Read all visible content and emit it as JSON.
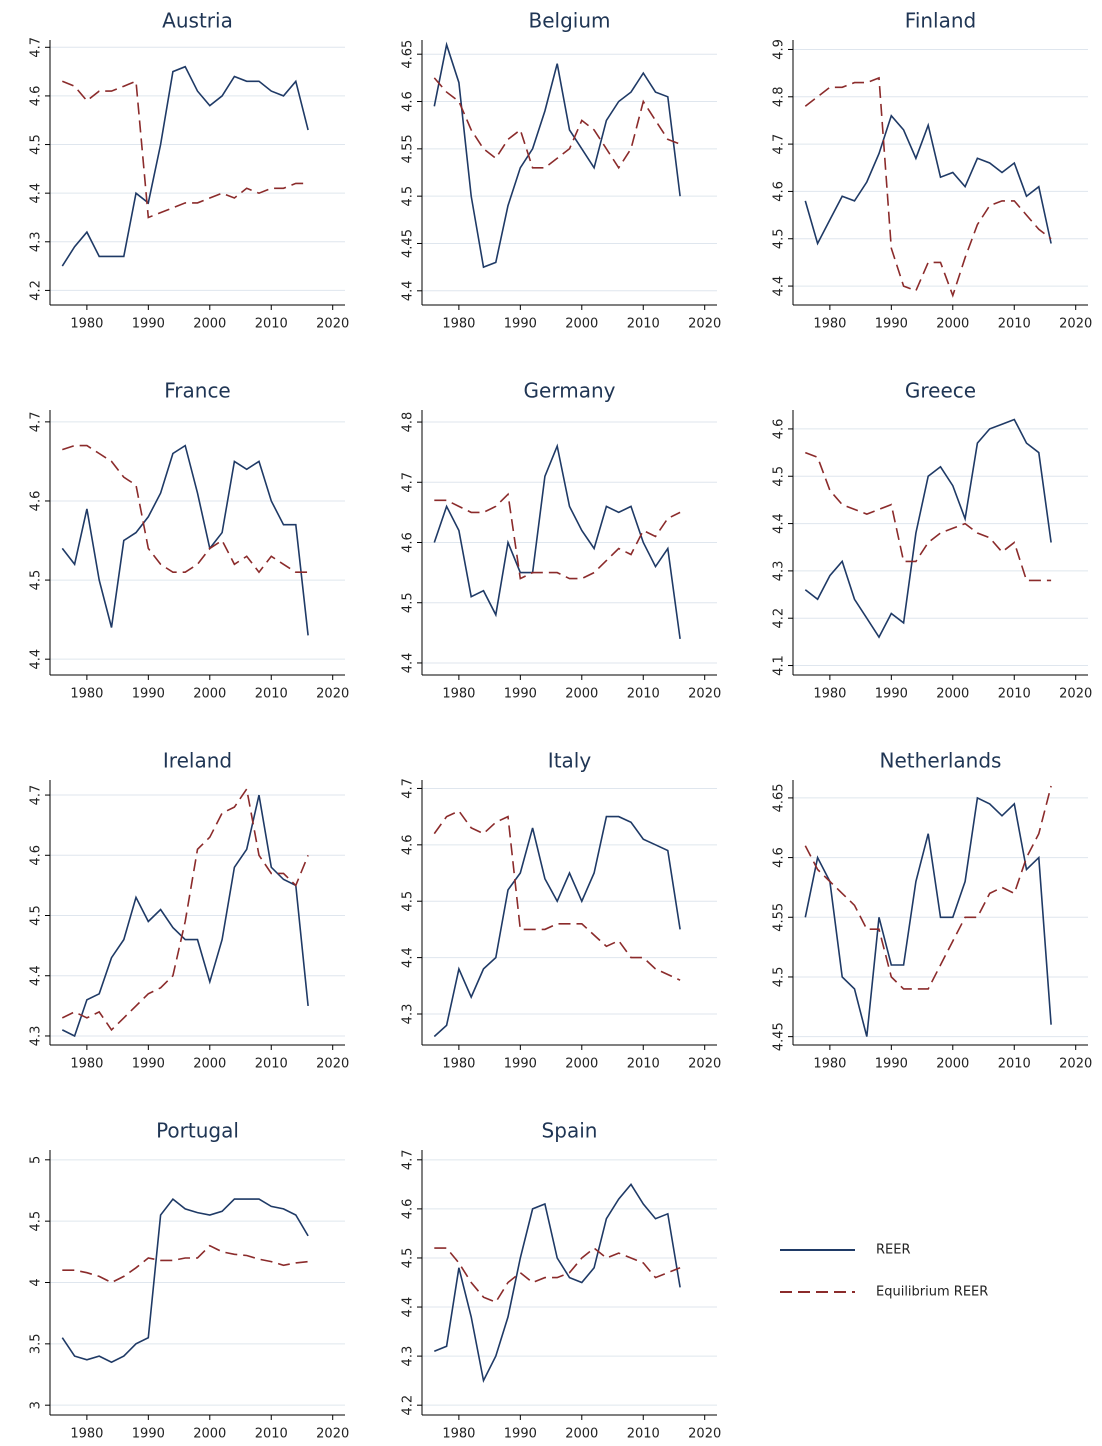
{
  "legend": [
    {
      "name": "REER",
      "color": "#1f3a66",
      "dash": "none"
    },
    {
      "name": "Equilibrium REER",
      "color": "#8b2b2b",
      "dash": "12 6"
    }
  ],
  "chart_data": [
    {
      "type": "line",
      "title": "Austria",
      "x": [
        1976,
        1978,
        1980,
        1982,
        1984,
        1986,
        1988,
        1990,
        1992,
        1994,
        1996,
        1998,
        2000,
        2002,
        2004,
        2006,
        2008,
        2010,
        2012,
        2014,
        2016
      ],
      "xlim": [
        1974,
        2022
      ],
      "xticks": [
        1980,
        1990,
        2000,
        2010,
        2020
      ],
      "ylim": [
        4.17,
        4.715
      ],
      "yticks": [
        4.2,
        4.3,
        4.4,
        4.5,
        4.6,
        4.7
      ],
      "series": [
        {
          "values": [
            4.25,
            4.29,
            4.32,
            4.27,
            4.27,
            4.27,
            4.4,
            4.38,
            4.5,
            4.65,
            4.66,
            4.61,
            4.58,
            4.6,
            4.64,
            4.63,
            4.63,
            4.61,
            4.6,
            4.63,
            4.53
          ]
        },
        {
          "values": [
            4.63,
            4.62,
            4.59,
            4.61,
            4.61,
            4.62,
            4.63,
            4.35,
            4.36,
            4.37,
            4.38,
            4.38,
            4.39,
            4.4,
            4.39,
            4.41,
            4.4,
            4.41,
            4.41,
            4.42,
            4.42
          ]
        }
      ]
    },
    {
      "type": "line",
      "title": "Belgium",
      "x": [
        1976,
        1978,
        1980,
        1982,
        1984,
        1986,
        1988,
        1990,
        1992,
        1994,
        1996,
        1998,
        2000,
        2002,
        2004,
        2006,
        2008,
        2010,
        2012,
        2014,
        2016
      ],
      "xlim": [
        1974,
        2022
      ],
      "xticks": [
        1980,
        1990,
        2000,
        2010,
        2020
      ],
      "ylim": [
        4.385,
        4.665
      ],
      "yticks": [
        4.4,
        4.45,
        4.5,
        4.55,
        4.6,
        4.65
      ],
      "series": [
        {
          "values": [
            4.595,
            4.66,
            4.62,
            4.5,
            4.425,
            4.43,
            4.49,
            4.53,
            4.55,
            4.59,
            4.64,
            4.57,
            4.55,
            4.53,
            4.58,
            4.6,
            4.61,
            4.63,
            4.61,
            4.605,
            4.5
          ]
        },
        {
          "values": [
            4.625,
            4.61,
            4.6,
            4.57,
            4.55,
            4.54,
            4.56,
            4.57,
            4.53,
            4.53,
            4.54,
            4.55,
            4.58,
            4.57,
            4.55,
            4.53,
            4.55,
            4.6,
            4.58,
            4.56,
            4.555
          ]
        }
      ]
    },
    {
      "type": "line",
      "title": "Finland",
      "x": [
        1976,
        1978,
        1980,
        1982,
        1984,
        1986,
        1988,
        1990,
        1992,
        1994,
        1996,
        1998,
        2000,
        2002,
        2004,
        2006,
        2008,
        2010,
        2012,
        2014,
        2016
      ],
      "xlim": [
        1974,
        2022
      ],
      "xticks": [
        1980,
        1990,
        2000,
        2010,
        2020
      ],
      "ylim": [
        4.36,
        4.92
      ],
      "yticks": [
        4.4,
        4.5,
        4.6,
        4.7,
        4.8,
        4.9
      ],
      "series": [
        {
          "values": [
            4.58,
            4.49,
            4.54,
            4.59,
            4.58,
            4.62,
            4.68,
            4.76,
            4.73,
            4.67,
            4.74,
            4.63,
            4.64,
            4.61,
            4.67,
            4.66,
            4.64,
            4.66,
            4.59,
            4.61,
            4.49
          ]
        },
        {
          "values": [
            4.78,
            4.8,
            4.82,
            4.82,
            4.83,
            4.83,
            4.84,
            4.48,
            4.4,
            4.39,
            4.45,
            4.45,
            4.38,
            4.46,
            4.53,
            4.57,
            4.58,
            4.58,
            4.55,
            4.52,
            4.5
          ]
        }
      ]
    },
    {
      "type": "line",
      "title": "France",
      "x": [
        1976,
        1978,
        1980,
        1982,
        1984,
        1986,
        1988,
        1990,
        1992,
        1994,
        1996,
        1998,
        2000,
        2002,
        2004,
        2006,
        2008,
        2010,
        2012,
        2014,
        2016
      ],
      "xlim": [
        1974,
        2022
      ],
      "xticks": [
        1980,
        1990,
        2000,
        2010,
        2020
      ],
      "ylim": [
        4.38,
        4.715
      ],
      "yticks": [
        4.4,
        4.5,
        4.6,
        4.7
      ],
      "series": [
        {
          "values": [
            4.54,
            4.52,
            4.59,
            4.5,
            4.44,
            4.55,
            4.56,
            4.58,
            4.61,
            4.66,
            4.67,
            4.61,
            4.54,
            4.56,
            4.65,
            4.64,
            4.65,
            4.6,
            4.57,
            4.57,
            4.43
          ]
        },
        {
          "values": [
            4.665,
            4.67,
            4.67,
            4.66,
            4.65,
            4.63,
            4.62,
            4.54,
            4.52,
            4.51,
            4.51,
            4.52,
            4.54,
            4.55,
            4.52,
            4.53,
            4.51,
            4.53,
            4.52,
            4.51,
            4.51
          ]
        }
      ]
    },
    {
      "type": "line",
      "title": "Germany",
      "x": [
        1976,
        1978,
        1980,
        1982,
        1984,
        1986,
        1988,
        1990,
        1992,
        1994,
        1996,
        1998,
        2000,
        2002,
        2004,
        2006,
        2008,
        2010,
        2012,
        2014,
        2016
      ],
      "xlim": [
        1974,
        2022
      ],
      "xticks": [
        1980,
        1990,
        2000,
        2010,
        2020
      ],
      "ylim": [
        4.38,
        4.82
      ],
      "yticks": [
        4.4,
        4.5,
        4.6,
        4.7,
        4.8
      ],
      "series": [
        {
          "values": [
            4.6,
            4.66,
            4.62,
            4.51,
            4.52,
            4.48,
            4.6,
            4.55,
            4.55,
            4.71,
            4.76,
            4.66,
            4.62,
            4.59,
            4.66,
            4.65,
            4.66,
            4.6,
            4.56,
            4.59,
            4.44
          ]
        },
        {
          "values": [
            4.67,
            4.67,
            4.66,
            4.65,
            4.65,
            4.66,
            4.68,
            4.54,
            4.55,
            4.55,
            4.55,
            4.54,
            4.54,
            4.55,
            4.57,
            4.59,
            4.58,
            4.62,
            4.61,
            4.64,
            4.65
          ]
        }
      ]
    },
    {
      "type": "line",
      "title": "Greece",
      "x": [
        1976,
        1978,
        1980,
        1982,
        1984,
        1986,
        1988,
        1990,
        1992,
        1994,
        1996,
        1998,
        2000,
        2002,
        2004,
        2006,
        2008,
        2010,
        2012,
        2014,
        2016
      ],
      "xlim": [
        1974,
        2022
      ],
      "xticks": [
        1980,
        1990,
        2000,
        2010,
        2020
      ],
      "ylim": [
        4.08,
        4.64
      ],
      "yticks": [
        4.1,
        4.2,
        4.3,
        4.4,
        4.5,
        4.6
      ],
      "series": [
        {
          "values": [
            4.26,
            4.24,
            4.29,
            4.32,
            4.24,
            4.2,
            4.16,
            4.21,
            4.19,
            4.38,
            4.5,
            4.52,
            4.48,
            4.41,
            4.57,
            4.6,
            4.61,
            4.62,
            4.57,
            4.55,
            4.36
          ]
        },
        {
          "values": [
            4.55,
            4.54,
            4.47,
            4.44,
            4.43,
            4.42,
            4.43,
            4.44,
            4.32,
            4.32,
            4.36,
            4.38,
            4.39,
            4.4,
            4.38,
            4.37,
            4.34,
            4.36,
            4.28,
            4.28,
            4.28
          ]
        }
      ]
    },
    {
      "type": "line",
      "title": "Ireland",
      "x": [
        1976,
        1978,
        1980,
        1982,
        1984,
        1986,
        1988,
        1990,
        1992,
        1994,
        1996,
        1998,
        2000,
        2002,
        2004,
        2006,
        2008,
        2010,
        2012,
        2014,
        2016
      ],
      "xlim": [
        1974,
        2022
      ],
      "xticks": [
        1980,
        1990,
        2000,
        2010,
        2020
      ],
      "ylim": [
        4.285,
        4.725
      ],
      "yticks": [
        4.3,
        4.4,
        4.5,
        4.6,
        4.7
      ],
      "series": [
        {
          "values": [
            4.31,
            4.3,
            4.36,
            4.37,
            4.43,
            4.46,
            4.53,
            4.49,
            4.51,
            4.48,
            4.46,
            4.46,
            4.39,
            4.46,
            4.58,
            4.61,
            4.7,
            4.58,
            4.56,
            4.55,
            4.35
          ]
        },
        {
          "values": [
            4.33,
            4.34,
            4.33,
            4.34,
            4.31,
            4.33,
            4.35,
            4.37,
            4.38,
            4.4,
            4.49,
            4.61,
            4.63,
            4.67,
            4.68,
            4.71,
            4.6,
            4.57,
            4.57,
            4.55,
            4.6
          ]
        }
      ]
    },
    {
      "type": "line",
      "title": "Italy",
      "x": [
        1976,
        1978,
        1980,
        1982,
        1984,
        1986,
        1988,
        1990,
        1992,
        1994,
        1996,
        1998,
        2000,
        2002,
        2004,
        2006,
        2008,
        2010,
        2012,
        2014,
        2016
      ],
      "xlim": [
        1974,
        2022
      ],
      "xticks": [
        1980,
        1990,
        2000,
        2010,
        2020
      ],
      "ylim": [
        4.245,
        4.715
      ],
      "yticks": [
        4.3,
        4.4,
        4.5,
        4.6,
        4.7
      ],
      "series": [
        {
          "values": [
            4.26,
            4.28,
            4.38,
            4.33,
            4.38,
            4.4,
            4.52,
            4.55,
            4.63,
            4.54,
            4.5,
            4.55,
            4.5,
            4.55,
            4.65,
            4.65,
            4.64,
            4.61,
            4.6,
            4.59,
            4.45
          ]
        },
        {
          "values": [
            4.62,
            4.65,
            4.66,
            4.63,
            4.62,
            4.64,
            4.65,
            4.45,
            4.45,
            4.45,
            4.46,
            4.46,
            4.46,
            4.44,
            4.42,
            4.43,
            4.4,
            4.4,
            4.38,
            4.37,
            4.36
          ]
        }
      ]
    },
    {
      "type": "line",
      "title": "Netherlands",
      "x": [
        1976,
        1978,
        1980,
        1982,
        1984,
        1986,
        1988,
        1990,
        1992,
        1994,
        1996,
        1998,
        2000,
        2002,
        2004,
        2006,
        2008,
        2010,
        2012,
        2014,
        2016
      ],
      "xlim": [
        1974,
        2022
      ],
      "xticks": [
        1980,
        1990,
        2000,
        2010,
        2020
      ],
      "ylim": [
        4.443,
        4.665
      ],
      "yticks": [
        4.45,
        4.5,
        4.55,
        4.6,
        4.65
      ],
      "series": [
        {
          "values": [
            4.55,
            4.6,
            4.58,
            4.5,
            4.49,
            4.45,
            4.55,
            4.51,
            4.51,
            4.58,
            4.62,
            4.55,
            4.55,
            4.58,
            4.65,
            4.645,
            4.635,
            4.645,
            4.59,
            4.6,
            4.46
          ]
        },
        {
          "values": [
            4.61,
            4.59,
            4.58,
            4.57,
            4.56,
            4.54,
            4.54,
            4.5,
            4.49,
            4.49,
            4.49,
            4.51,
            4.53,
            4.55,
            4.55,
            4.57,
            4.575,
            4.57,
            4.6,
            4.62,
            4.66
          ]
        }
      ]
    },
    {
      "type": "line",
      "title": "Portugal",
      "x": [
        1976,
        1978,
        1980,
        1982,
        1984,
        1986,
        1988,
        1990,
        1992,
        1994,
        1996,
        1998,
        2000,
        2002,
        2004,
        2006,
        2008,
        2010,
        2012,
        2014,
        2016
      ],
      "xlim": [
        1974,
        2022
      ],
      "xticks": [
        1980,
        1990,
        2000,
        2010,
        2020
      ],
      "ylim": [
        2.92,
        5.08
      ],
      "yticks": [
        3,
        3.5,
        4,
        4.5,
        5
      ],
      "series": [
        {
          "values": [
            3.55,
            3.4,
            3.37,
            3.4,
            3.35,
            3.4,
            3.5,
            3.55,
            4.55,
            4.68,
            4.6,
            4.57,
            4.55,
            4.58,
            4.68,
            4.68,
            4.68,
            4.62,
            4.6,
            4.55,
            4.38
          ]
        },
        {
          "values": [
            4.1,
            4.1,
            4.08,
            4.05,
            4.0,
            4.05,
            4.12,
            4.2,
            4.18,
            4.18,
            4.2,
            4.2,
            4.3,
            4.25,
            4.23,
            4.22,
            4.19,
            4.17,
            4.14,
            4.16,
            4.17
          ]
        }
      ]
    },
    {
      "type": "line",
      "title": "Spain",
      "x": [
        1976,
        1978,
        1980,
        1982,
        1984,
        1986,
        1988,
        1990,
        1992,
        1994,
        1996,
        1998,
        2000,
        2002,
        2004,
        2006,
        2008,
        2010,
        2012,
        2014,
        2016
      ],
      "xlim": [
        1974,
        2022
      ],
      "xticks": [
        1980,
        1990,
        2000,
        2010,
        2020
      ],
      "ylim": [
        4.18,
        4.72
      ],
      "yticks": [
        4.2,
        4.3,
        4.4,
        4.5,
        4.6,
        4.7
      ],
      "series": [
        {
          "values": [
            4.31,
            4.32,
            4.48,
            4.38,
            4.25,
            4.3,
            4.38,
            4.5,
            4.6,
            4.61,
            4.5,
            4.46,
            4.45,
            4.48,
            4.58,
            4.62,
            4.65,
            4.61,
            4.58,
            4.59,
            4.44
          ]
        },
        {
          "values": [
            4.52,
            4.52,
            4.49,
            4.45,
            4.42,
            4.41,
            4.45,
            4.47,
            4.45,
            4.46,
            4.46,
            4.47,
            4.5,
            4.52,
            4.5,
            4.51,
            4.5,
            4.49,
            4.46,
            4.47,
            4.48
          ]
        }
      ]
    }
  ]
}
